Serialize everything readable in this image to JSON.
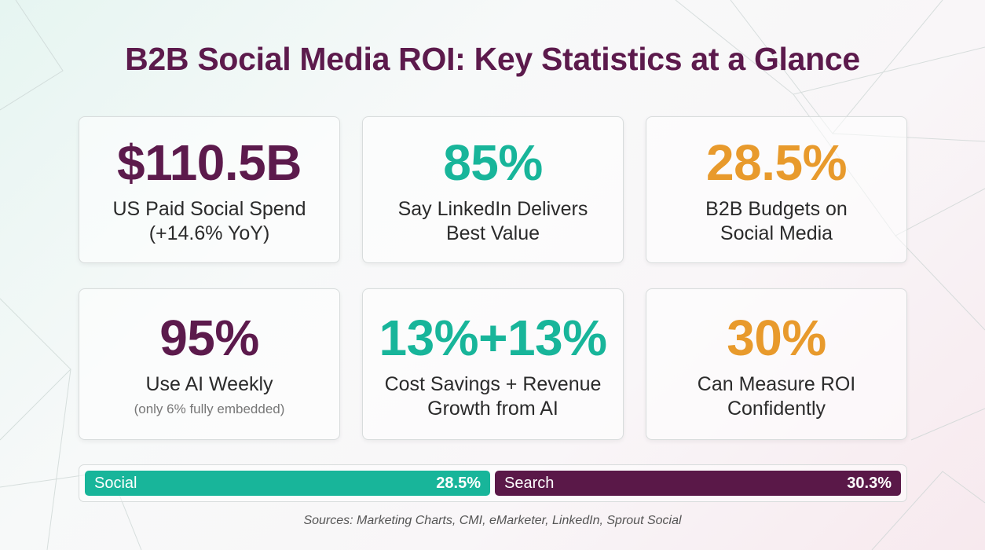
{
  "title": "B2B Social Media ROI: Key Statistics at a Glance",
  "colors": {
    "title": "#5c1a4c",
    "purple": "#5c1a4c",
    "teal": "#18b59a",
    "orange": "#e89a2c"
  },
  "cards": [
    {
      "value": "$110.5B",
      "label": "US Paid Social Spend\n(+14.6% YoY)",
      "color": "#5c1a4c"
    },
    {
      "value": "85%",
      "label": "Say LinkedIn Delivers\nBest Value",
      "color": "#18b59a"
    },
    {
      "value": "28.5%",
      "label": "B2B Budgets on\nSocial Media",
      "color": "#e89a2c"
    },
    {
      "value": "95%",
      "label": "Use AI Weekly",
      "note": "(only 6% fully embedded)",
      "color": "#5c1a4c"
    },
    {
      "value": "13%+13%",
      "label": "Cost Savings + Revenue\nGrowth from AI",
      "color": "#18b59a"
    },
    {
      "value": "30%",
      "label": "Can Measure ROI\nConfidently",
      "color": "#e89a2c"
    }
  ],
  "comparison_bar": {
    "segments": [
      {
        "label": "Social",
        "percent_label": "28.5%",
        "value": 28.5
      },
      {
        "label": "Search",
        "percent_label": "30.3%",
        "value": 30.3
      }
    ]
  },
  "sources": "Sources: Marketing Charts, CMI, eMarketer, LinkedIn, Sprout Social"
}
